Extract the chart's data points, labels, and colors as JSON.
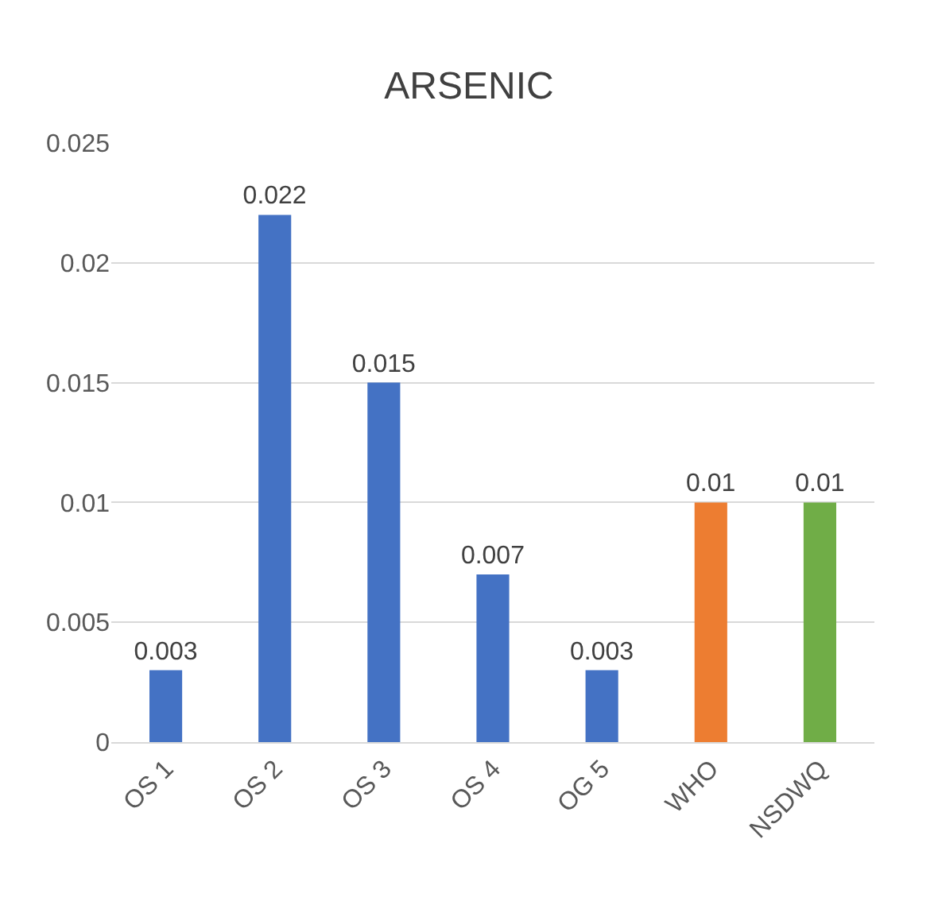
{
  "chart_data": {
    "type": "bar",
    "title": "ARSENIC",
    "categories": [
      "OS 1",
      "OS 2",
      "OS 3",
      "OS 4",
      "OG 5",
      "WHO",
      "NSDWQ"
    ],
    "values": [
      0.003,
      0.022,
      0.015,
      0.007,
      0.003,
      0.01,
      0.01
    ],
    "colors": [
      "#4472c4",
      "#4472c4",
      "#4472c4",
      "#4472c4",
      "#4472c4",
      "#ed7d31",
      "#70ad47"
    ],
    "ylim": [
      0,
      0.025
    ],
    "yticks": [
      0,
      0.005,
      0.01,
      0.015,
      0.02,
      0.025
    ],
    "grid": "y",
    "data_labels": true
  }
}
